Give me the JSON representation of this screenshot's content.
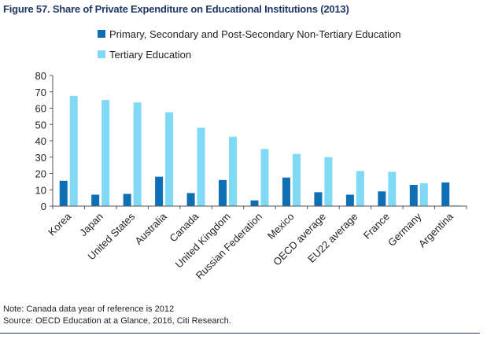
{
  "title": "Figure 57. Share of Private Expenditure on Educational Institutions (2013)",
  "notes": {
    "note": "Note: Canada data year of reference is 2012",
    "source": "Source: OECD Education at a Glance, 2016, Citi Research."
  },
  "chart_data": {
    "type": "bar",
    "categories": [
      "Korea",
      "Japan",
      "United States",
      "Australia",
      "Canada",
      "United Kingdom",
      "Russian Federation",
      "Mexico",
      "OECD average",
      "EU22 average",
      "France",
      "Germany",
      "Argentina"
    ],
    "series": [
      {
        "name": "Primary, Secondary and Post-Secondary Non-Tertiary Education",
        "color": "#0f6fb5",
        "values": [
          15.5,
          7,
          7.5,
          18,
          8,
          16,
          3.5,
          17.5,
          8.5,
          7,
          9,
          13,
          14.5
        ]
      },
      {
        "name": "Tertiary Education",
        "color": "#80d9f5",
        "values": [
          67.5,
          65,
          63.5,
          57.5,
          48,
          42.5,
          35,
          32,
          30,
          21.5,
          21,
          14,
          0.5
        ]
      }
    ],
    "yticks": [
      "0",
      "10",
      "20",
      "30",
      "40",
      "50",
      "60",
      "70",
      "80"
    ],
    "ylim": [
      0,
      80
    ],
    "legend_position": "top-left",
    "grid": false
  }
}
